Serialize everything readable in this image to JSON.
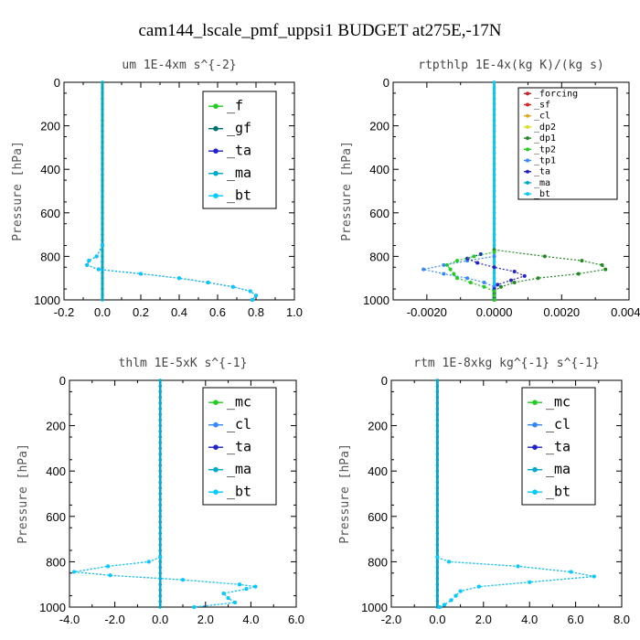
{
  "figure": {
    "title": "cam144_lscale_pmf_uppsi1  BUDGET at275E,-17N"
  },
  "chart_data": [
    {
      "type": "line",
      "title": "um  1E-4xm s^{-2}",
      "ylabel": "Pressure [hPa]",
      "xlim": [
        -0.2,
        1.0
      ],
      "ylim": [
        1000,
        0
      ],
      "xticks": [
        "-0.2",
        "0.0",
        "0.2",
        "0.4",
        "0.6",
        "0.8",
        "1.0"
      ],
      "yticks": [
        "0",
        "200",
        "400",
        "600",
        "800",
        "1000"
      ],
      "legend": "top-right",
      "series": [
        {
          "name": "_f",
          "color": "#22cc22",
          "pressure": [
            0,
            1000
          ],
          "values": [
            0,
            0
          ]
        },
        {
          "name": "_gf",
          "color": "#007070",
          "pressure": [
            0,
            1000
          ],
          "values": [
            0,
            0
          ]
        },
        {
          "name": "_ta",
          "color": "#2222cc",
          "pressure": [
            750,
            800,
            820,
            840,
            860,
            880,
            900,
            920,
            940,
            960,
            980,
            1000
          ],
          "values": [
            0.0,
            -0.03,
            -0.07,
            -0.08,
            -0.02,
            0.2,
            0.4,
            0.55,
            0.68,
            0.77,
            0.8,
            0.78
          ]
        },
        {
          "name": "_ma",
          "color": "#00aacc",
          "pressure": [
            0,
            1000
          ],
          "values": [
            0,
            0
          ]
        },
        {
          "name": "_bt",
          "color": "#00ccff",
          "pressure": [
            750,
            800,
            820,
            840,
            860,
            880,
            900,
            920,
            940,
            960,
            980,
            1000
          ],
          "values": [
            0.0,
            -0.03,
            -0.07,
            -0.08,
            -0.02,
            0.2,
            0.4,
            0.55,
            0.68,
            0.77,
            0.8,
            0.78
          ]
        }
      ]
    },
    {
      "type": "line",
      "title": "rtpthlp  1E-4x(kg K)/(kg s)",
      "ylabel": "Pressure [hPa]",
      "xlim": [
        -0.003,
        0.004
      ],
      "ylim": [
        1000,
        0
      ],
      "xticks": [
        "-0.0020",
        "0.0000",
        "0.0020",
        "0.0040"
      ],
      "xtick_values": [
        -0.002,
        0.0,
        0.002,
        0.004
      ],
      "yticks": [
        "0",
        "200",
        "400",
        "600",
        "800",
        "1000"
      ],
      "legend": "top-right",
      "series": [
        {
          "name": "_forcing",
          "color": "#cc2222",
          "pressure": [
            0,
            1000
          ],
          "values": [
            0,
            0
          ]
        },
        {
          "name": "_sf",
          "color": "#dd2222",
          "pressure": [
            0,
            1000
          ],
          "values": [
            0,
            0
          ]
        },
        {
          "name": "_cl",
          "color": "#ddaa22",
          "pressure": [
            0,
            1000
          ],
          "values": [
            0,
            0
          ]
        },
        {
          "name": "_dp2",
          "color": "#dddd22",
          "pressure": [
            0,
            1000
          ],
          "values": [
            0,
            0
          ]
        },
        {
          "name": "_dp1",
          "color": "#228822",
          "pressure": [
            770,
            800,
            820,
            840,
            860,
            880,
            900,
            920,
            940,
            960,
            980,
            1000
          ],
          "values": [
            0.0,
            0.0015,
            0.0026,
            0.0032,
            0.0033,
            0.0025,
            0.0013,
            0.0006,
            0.0002,
            0.0,
            0.0,
            0.0
          ]
        },
        {
          "name": "_tp2",
          "color": "#22cc22",
          "pressure": [
            780,
            800,
            820,
            840,
            860,
            880,
            900,
            920,
            940,
            960,
            980,
            1000
          ],
          "values": [
            0.0,
            -0.0006,
            -0.0011,
            -0.0014,
            -0.0013,
            -0.0012,
            -0.0011,
            -0.0007,
            -0.0003,
            0.0,
            0.0,
            0.0
          ]
        },
        {
          "name": "_tp1",
          "color": "#3388ff",
          "pressure": [
            800,
            820,
            840,
            860,
            880,
            900,
            920,
            940,
            960,
            980,
            1000
          ],
          "values": [
            0.0,
            -0.0008,
            -0.0015,
            -0.0021,
            -0.0015,
            -0.0008,
            -0.0003,
            0.0,
            0.0,
            0.0,
            0.0
          ]
        },
        {
          "name": "_ta",
          "color": "#2222cc",
          "pressure": [
            790,
            810,
            830,
            850,
            870,
            890,
            910,
            930,
            950,
            970,
            990
          ],
          "values": [
            -0.0004,
            -0.0008,
            -0.0005,
            0.0,
            0.0006,
            0.0009,
            0.0005,
            0.0001,
            0.0,
            0.0,
            0.0
          ]
        },
        {
          "name": "_ma",
          "color": "#00aacc",
          "pressure": [
            0,
            1000
          ],
          "values": [
            0,
            0
          ]
        },
        {
          "name": "_bt",
          "color": "#00ccff",
          "pressure": [
            0,
            1000
          ],
          "values": [
            0,
            0
          ]
        }
      ]
    },
    {
      "type": "line",
      "title": "thlm  1E-5xK s^{-1}",
      "ylabel": "Pressure [hPa]",
      "xlim": [
        -4.0,
        6.0
      ],
      "ylim": [
        1000,
        0
      ],
      "xticks": [
        "-4.0",
        "-2.0",
        "0.0",
        "2.0",
        "4.0",
        "6.0"
      ],
      "yticks": [
        "0",
        "200",
        "400",
        "600",
        "800",
        "1000"
      ],
      "legend": "top-right",
      "series": [
        {
          "name": "_mc",
          "color": "#22cc22",
          "pressure": [
            0,
            1000
          ],
          "values": [
            0,
            0
          ]
        },
        {
          "name": "_cl",
          "color": "#3388ff",
          "pressure": [
            780,
            800,
            820,
            845,
            860,
            880,
            900,
            910,
            920,
            940,
            960,
            980,
            1000
          ],
          "values": [
            0.0,
            -0.5,
            -2.3,
            -3.8,
            -2.2,
            1.0,
            3.5,
            4.2,
            3.8,
            2.8,
            3.0,
            3.3,
            1.5
          ]
        },
        {
          "name": "_ta",
          "color": "#2222cc",
          "pressure": [
            0,
            1000
          ],
          "values": [
            0,
            0
          ]
        },
        {
          "name": "_ma",
          "color": "#00aacc",
          "pressure": [
            0,
            1000
          ],
          "values": [
            0,
            0
          ]
        },
        {
          "name": "_bt",
          "color": "#00ccff",
          "pressure": [
            780,
            800,
            820,
            845,
            860,
            880,
            900,
            910,
            920,
            940,
            960,
            980,
            1000
          ],
          "values": [
            0.0,
            -0.5,
            -2.3,
            -3.8,
            -2.2,
            1.0,
            3.5,
            4.2,
            3.8,
            2.8,
            3.0,
            3.3,
            1.5
          ]
        }
      ]
    },
    {
      "type": "line",
      "title": "rtm  1E-8xkg kg^{-1} s^{-1}",
      "ylabel": "Pressure [hPa]",
      "xlim": [
        -2.0,
        8.0
      ],
      "ylim": [
        1000,
        0
      ],
      "xticks": [
        "-2.0",
        "0.0",
        "2.0",
        "4.0",
        "6.0",
        "8.0"
      ],
      "yticks": [
        "0",
        "200",
        "400",
        "600",
        "800",
        "1000"
      ],
      "legend": "top-right",
      "series": [
        {
          "name": "_mc",
          "color": "#22cc22",
          "pressure": [
            0,
            1000
          ],
          "values": [
            0,
            0
          ]
        },
        {
          "name": "_cl",
          "color": "#3388ff",
          "pressure": [
            780,
            800,
            820,
            845,
            865,
            890,
            910,
            930,
            950,
            970,
            990,
            1000
          ],
          "values": [
            0.0,
            0.5,
            3.5,
            5.8,
            6.8,
            4.0,
            1.8,
            1.0,
            0.8,
            0.6,
            0.3,
            0.1
          ]
        },
        {
          "name": "_ta",
          "color": "#2222cc",
          "pressure": [
            0,
            1000
          ],
          "values": [
            0,
            0
          ]
        },
        {
          "name": "_ma",
          "color": "#00aacc",
          "pressure": [
            0,
            1000
          ],
          "values": [
            0,
            0
          ]
        },
        {
          "name": "_bt",
          "color": "#00ccff",
          "pressure": [
            780,
            800,
            820,
            845,
            865,
            890,
            910,
            930,
            950,
            970,
            990,
            1000
          ],
          "values": [
            0.0,
            0.5,
            3.5,
            5.8,
            6.8,
            4.0,
            1.8,
            1.0,
            0.8,
            0.6,
            0.3,
            0.1
          ]
        }
      ]
    }
  ]
}
